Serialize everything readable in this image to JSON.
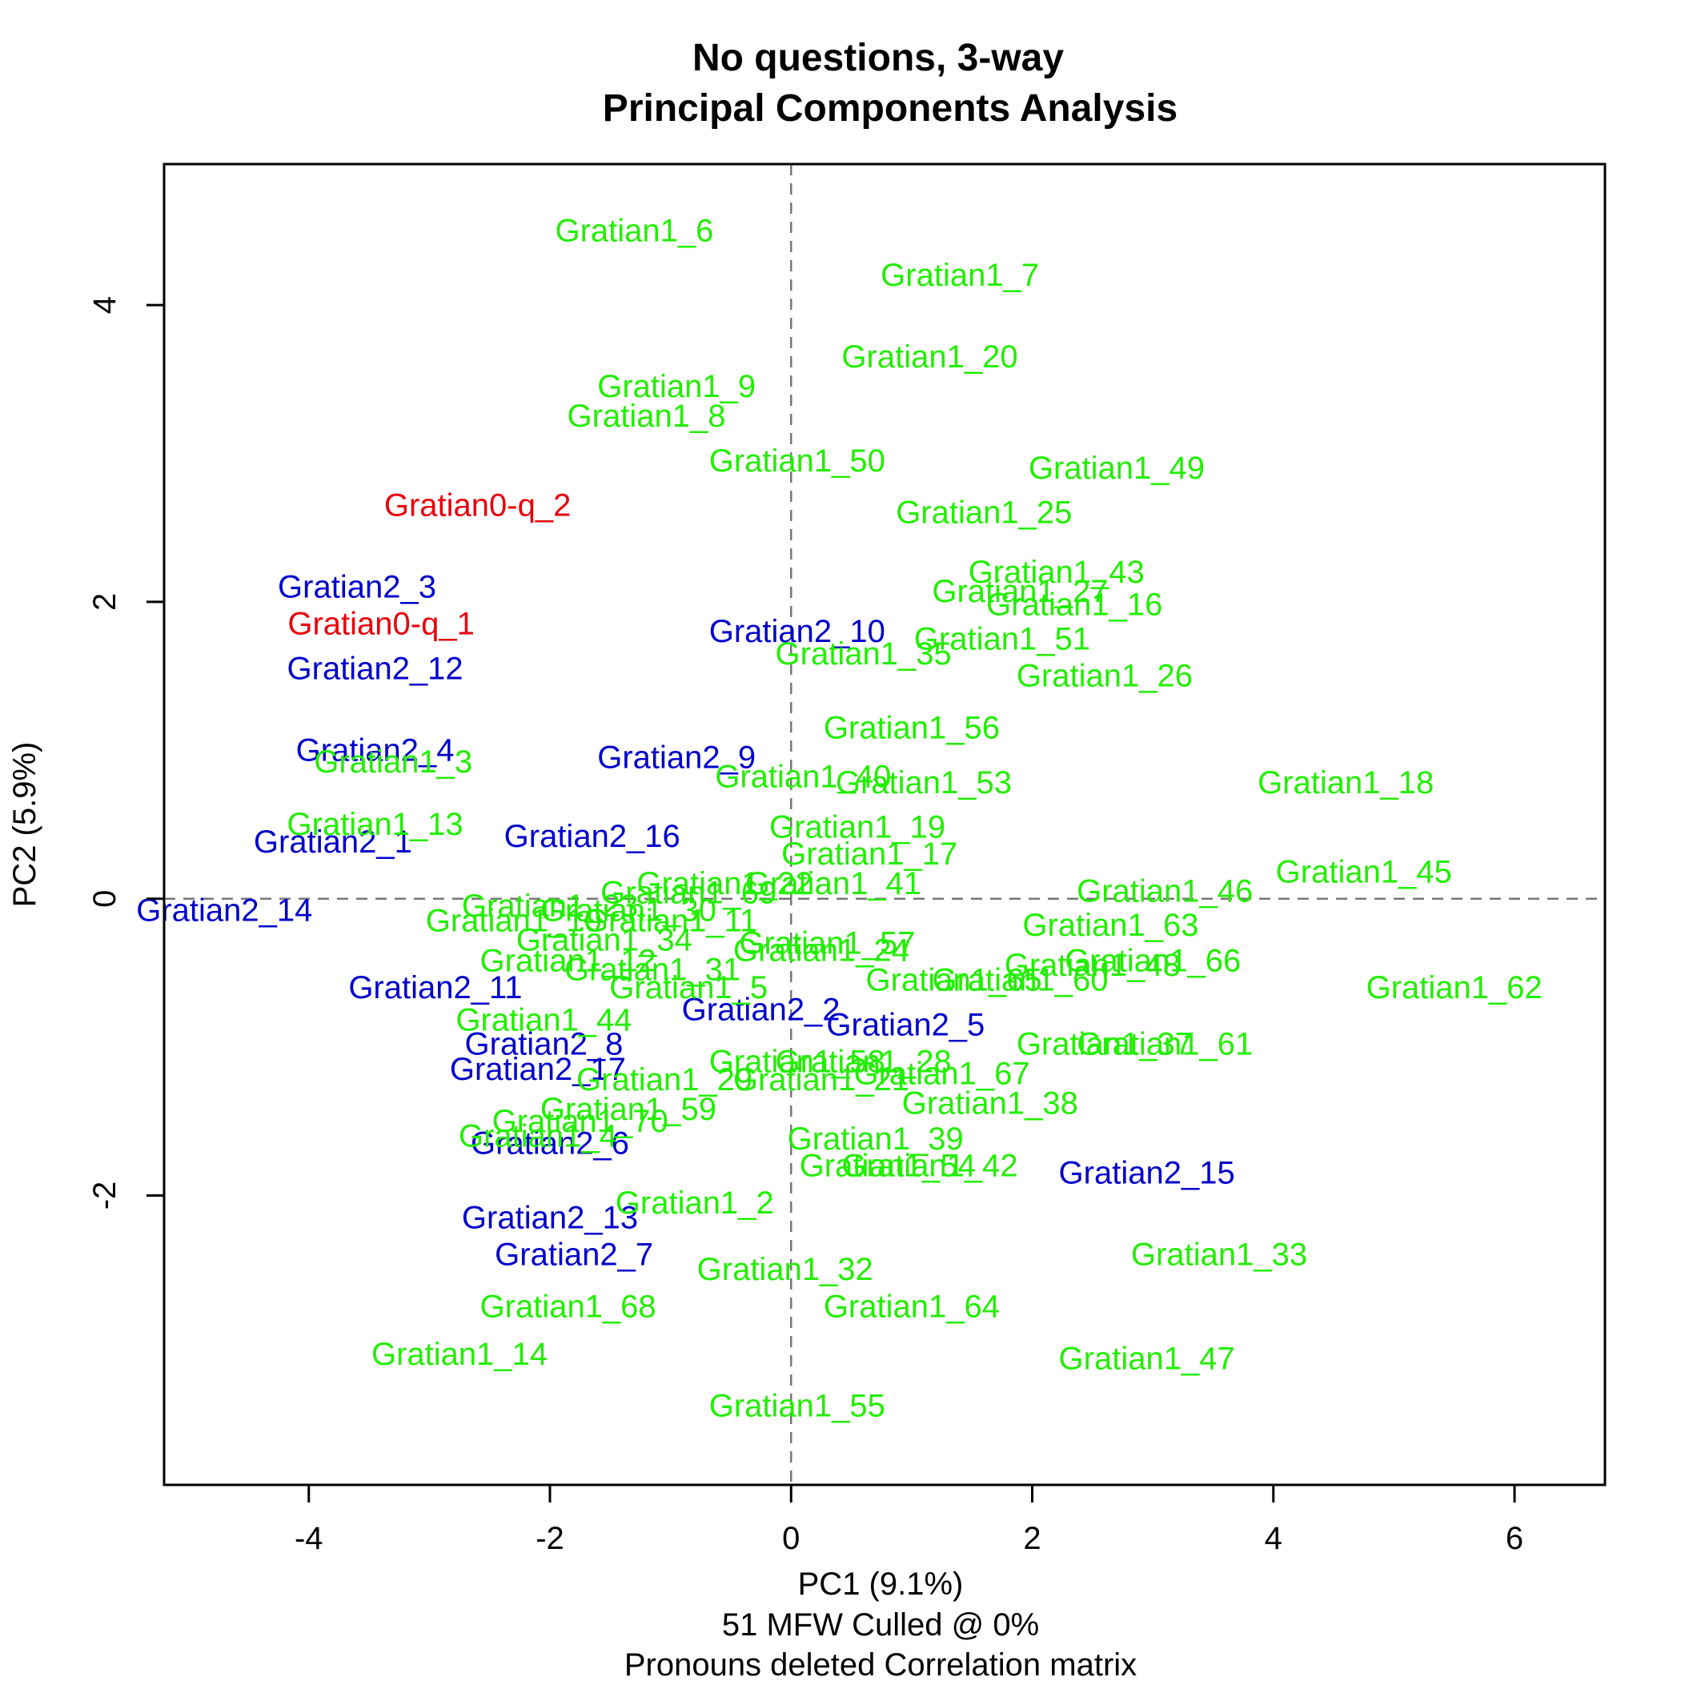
{
  "chart_data": {
    "type": "scatter",
    "title": [
      "No questions, 3-way",
      "Principal Components Analysis"
    ],
    "xlabel": "PC1 (9.1%)",
    "ylabel": "PC2 (5.9%)",
    "footnotes": [
      "51 MFW  Culled @ 0%",
      "Pronouns deleted Correlation matrix"
    ],
    "xlim": [
      -5.2,
      6.75
    ],
    "ylim": [
      -3.95,
      4.95
    ],
    "x_ticks": [
      -4,
      -2,
      0,
      2,
      4,
      6
    ],
    "x_tick_labels": [
      "-4",
      "-2",
      "0",
      "2",
      "4",
      "6"
    ],
    "y_ticks": [
      -2,
      0,
      2,
      4
    ],
    "y_tick_labels": [
      "-2",
      "0",
      "2",
      "4"
    ],
    "reference_lines": {
      "x": 0,
      "y": 0,
      "style": "dashed"
    },
    "grid": false,
    "legend": "none",
    "colors": {
      "Gratian0-q": "#e8000b",
      "Gratian1": "#22ee00",
      "Gratian2": "#0000cc"
    },
    "series": [
      {
        "group": "Gratian0-q",
        "points": [
          {
            "label": "Gratian0-q_2",
            "x": -2.6,
            "y": 2.65
          },
          {
            "label": "Gratian0-q_1",
            "x": -3.4,
            "y": 1.85
          }
        ]
      },
      {
        "group": "Gratian2",
        "points": [
          {
            "label": "Gratian2_3",
            "x": -3.6,
            "y": 2.1
          },
          {
            "label": "Gratian2_12",
            "x": -3.45,
            "y": 1.55
          },
          {
            "label": "Gratian2_4",
            "x": -3.45,
            "y": 1.0
          },
          {
            "label": "Gratian2_1",
            "x": -3.8,
            "y": 0.38
          },
          {
            "label": "Gratian2_14",
            "x": -4.7,
            "y": -0.08
          },
          {
            "label": "Gratian2_11",
            "x": -2.95,
            "y": -0.6
          },
          {
            "label": "Gratian2_17",
            "x": -2.1,
            "y": -1.15
          },
          {
            "label": "Gratian2_8",
            "x": -2.05,
            "y": -0.98
          },
          {
            "label": "Gratian2_6",
            "x": -2.0,
            "y": -1.65
          },
          {
            "label": "Gratian2_13",
            "x": -2.0,
            "y": -2.15
          },
          {
            "label": "Gratian2_7",
            "x": -1.8,
            "y": -2.4
          },
          {
            "label": "Gratian2_10",
            "x": 0.05,
            "y": 1.8
          },
          {
            "label": "Gratian2_9",
            "x": -0.95,
            "y": 0.95
          },
          {
            "label": "Gratian2_16",
            "x": -1.65,
            "y": 0.42
          },
          {
            "label": "Gratian2_2",
            "x": -0.25,
            "y": -0.75
          },
          {
            "label": "Gratian2_5",
            "x": 0.95,
            "y": -0.85
          },
          {
            "label": "Gratian2_15",
            "x": 2.95,
            "y": -1.85
          }
        ]
      },
      {
        "group": "Gratian1",
        "points": [
          {
            "label": "Gratian1_6",
            "x": -1.3,
            "y": 4.5
          },
          {
            "label": "Gratian1_7",
            "x": 1.4,
            "y": 4.2
          },
          {
            "label": "Gratian1_20",
            "x": 1.15,
            "y": 3.65
          },
          {
            "label": "Gratian1_9",
            "x": -0.95,
            "y": 3.45
          },
          {
            "label": "Gratian1_8",
            "x": -1.2,
            "y": 3.25
          },
          {
            "label": "Gratian1_50",
            "x": 0.05,
            "y": 2.95
          },
          {
            "label": "Gratian1_49",
            "x": 2.7,
            "y": 2.9
          },
          {
            "label": "Gratian1_25",
            "x": 1.6,
            "y": 2.6
          },
          {
            "label": "Gratian1_43",
            "x": 2.2,
            "y": 2.2
          },
          {
            "label": "Gratian1_3",
            "x": -3.3,
            "y": 0.92
          },
          {
            "label": "Gratian1_13",
            "x": -3.45,
            "y": 0.5
          },
          {
            "label": "Gratian1_16",
            "x": 2.35,
            "y": 1.98
          },
          {
            "label": "Gratian1_27",
            "x": 1.9,
            "y": 2.07
          },
          {
            "label": "Gratian1_51",
            "x": 1.75,
            "y": 1.75
          },
          {
            "label": "Gratian1_35",
            "x": 0.6,
            "y": 1.65
          },
          {
            "label": "Gratian1_26",
            "x": 2.6,
            "y": 1.5
          },
          {
            "label": "Gratian1_56",
            "x": 1.0,
            "y": 1.15
          },
          {
            "label": "Gratian1_40",
            "x": 0.1,
            "y": 0.82
          },
          {
            "label": "Gratian1_53",
            "x": 1.1,
            "y": 0.78
          },
          {
            "label": "Gratian1_18",
            "x": 4.6,
            "y": 0.78
          },
          {
            "label": "Gratian1_19",
            "x": 0.55,
            "y": 0.48
          },
          {
            "label": "Gratian1_17",
            "x": 0.65,
            "y": 0.3
          },
          {
            "label": "Gratian1_45",
            "x": 4.75,
            "y": 0.18
          },
          {
            "label": "Gratian1_41",
            "x": 0.35,
            "y": 0.1
          },
          {
            "label": "Gratian1_46",
            "x": 3.1,
            "y": 0.05
          },
          {
            "label": "Gratian1_69",
            "x": -0.85,
            "y": 0.04
          },
          {
            "label": "Gratian1_22",
            "x": -0.55,
            "y": 0.1
          },
          {
            "label": "Gratian1_30",
            "x": -1.35,
            "y": -0.08
          },
          {
            "label": "Gratian1_11",
            "x": -1.0,
            "y": -0.15
          },
          {
            "label": "Gratian1_10",
            "x": -2.3,
            "y": -0.15
          },
          {
            "label": "Gratian1_23",
            "x": -2.0,
            "y": -0.05
          },
          {
            "label": "Gratian1_63",
            "x": 2.65,
            "y": -0.18
          },
          {
            "label": "Gratian1_57",
            "x": 0.3,
            "y": -0.3
          },
          {
            "label": "Gratian1_24",
            "x": 0.25,
            "y": -0.35
          },
          {
            "label": "Gratian1_34",
            "x": -1.55,
            "y": -0.28
          },
          {
            "label": "Gratian1_66",
            "x": 3.0,
            "y": -0.42
          },
          {
            "label": "Gratian1_48",
            "x": 2.5,
            "y": -0.45
          },
          {
            "label": "Gratian1_12",
            "x": -1.85,
            "y": -0.42
          },
          {
            "label": "Gratian1_31",
            "x": -1.15,
            "y": -0.48
          },
          {
            "label": "Gratian1_60",
            "x": 1.9,
            "y": -0.55
          },
          {
            "label": "Gratian1_65",
            "x": 1.35,
            "y": -0.55
          },
          {
            "label": "Gratian1_5",
            "x": -0.85,
            "y": -0.6
          },
          {
            "label": "Gratian1_62",
            "x": 5.5,
            "y": -0.6
          },
          {
            "label": "Gratian1_44",
            "x": -2.05,
            "y": -0.82
          },
          {
            "label": "Gratian1_61",
            "x": 3.1,
            "y": -0.98
          },
          {
            "label": "Gratian1_37",
            "x": 2.6,
            "y": -0.98
          },
          {
            "label": "Gratian1_58",
            "x": 0.05,
            "y": -1.1
          },
          {
            "label": "Gratian1_28",
            "x": 0.6,
            "y": -1.1
          },
          {
            "label": "Gratian1_67",
            "x": 1.25,
            "y": -1.18
          },
          {
            "label": "Gratian1_29",
            "x": -1.05,
            "y": -1.22
          },
          {
            "label": "Gratian1_21",
            "x": 0.25,
            "y": -1.22
          },
          {
            "label": "Gratian1_38",
            "x": 1.65,
            "y": -1.38
          },
          {
            "label": "Gratian1_59",
            "x": -1.35,
            "y": -1.42
          },
          {
            "label": "Gratian1_70",
            "x": -1.75,
            "y": -1.5
          },
          {
            "label": "Gratian1_4",
            "x": -2.1,
            "y": -1.6
          },
          {
            "label": "Gratian1_39",
            "x": 0.7,
            "y": -1.62
          },
          {
            "label": "Gratian1_42",
            "x": 1.15,
            "y": -1.8
          },
          {
            "label": "Gratian1_54",
            "x": 0.8,
            "y": -1.8
          },
          {
            "label": "Gratian1_2",
            "x": -0.8,
            "y": -2.05
          },
          {
            "label": "Gratian1_33",
            "x": 3.55,
            "y": -2.4
          },
          {
            "label": "Gratian1_32",
            "x": -0.05,
            "y": -2.5
          },
          {
            "label": "Gratian1_64",
            "x": 1.0,
            "y": -2.75
          },
          {
            "label": "Gratian1_68",
            "x": -1.85,
            "y": -2.75
          },
          {
            "label": "Gratian1_14",
            "x": -2.75,
            "y": -3.07
          },
          {
            "label": "Gratian1_47",
            "x": 2.95,
            "y": -3.1
          },
          {
            "label": "Gratian1_55",
            "x": 0.05,
            "y": -3.42
          }
        ]
      }
    ]
  }
}
